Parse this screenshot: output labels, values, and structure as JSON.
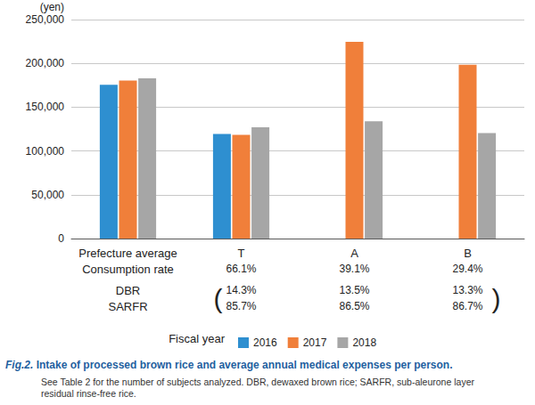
{
  "chart_data": {
    "type": "bar",
    "y_label": "(yen)",
    "categories": [
      "Prefecture average",
      "T",
      "A",
      "B"
    ],
    "series": [
      {
        "name": "2016",
        "color": "#2e8fd0",
        "values": [
          175500,
          119500,
          null,
          null
        ]
      },
      {
        "name": "2017",
        "color": "#f07f3a",
        "values": [
          180500,
          118500,
          224500,
          198500
        ]
      },
      {
        "name": "2018",
        "color": "#a6a6a6",
        "values": [
          183000,
          127000,
          134000,
          120500
        ]
      }
    ],
    "ylim": [
      0,
      250000
    ],
    "yticks": [
      0,
      {
        "value": 50000,
        "label": "50,000"
      },
      {
        "value": 100000,
        "label": "100,000"
      },
      {
        "value": 150000,
        "label": "150,000"
      },
      {
        "value": 200000,
        "label": "200,000"
      },
      {
        "value": 250000,
        "label": "250,000"
      }
    ],
    "grid": true,
    "legend": "bottom",
    "legend_title": "Fiscal year",
    "table": {
      "rows": [
        {
          "label": "Consumption rate",
          "values": [
            "66.1%",
            "39.1%",
            "29.4%"
          ]
        },
        {
          "label": "DBR",
          "values": [
            "14.3%",
            "13.5%",
            "13.3%"
          ]
        },
        {
          "label": "SARFR",
          "values": [
            "85.7%",
            "86.5%",
            "86.7%"
          ]
        }
      ],
      "bracket_open": "(",
      "bracket_close": ")"
    },
    "caption": {
      "label": "Fig.2.",
      "title": "Intake of processed brown rice and average annual medical expenses per person.",
      "note": "See Table 2 for the number of subjects analyzed. DBR, dewaxed brown rice; SARFR, sub-aleurone layer residual rinse-free rice."
    }
  }
}
